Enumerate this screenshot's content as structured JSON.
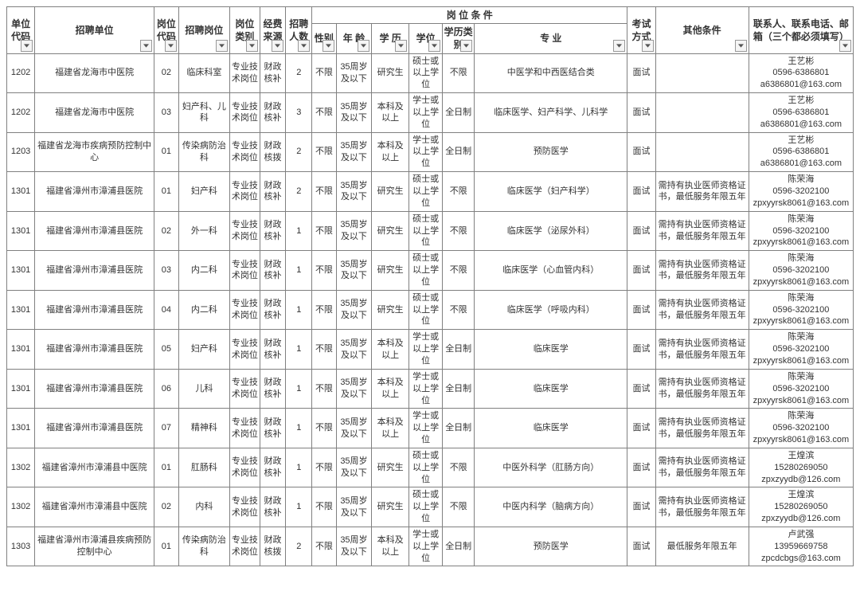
{
  "headers": {
    "unit_code": "单位代码",
    "employer": "招聘单位",
    "pos_code": "岗位代码",
    "position": "招聘岗位",
    "pos_type": "岗位类别",
    "fund_src": "经费来源",
    "headcount": "招聘人数",
    "conditions": "岗 位 条 件",
    "gender": "性别",
    "age": "年 龄",
    "education": "学 历",
    "degree": "学位",
    "edu_type": "学历类别",
    "major": "专 业",
    "exam": "考试方式",
    "other": "其他条件",
    "contact": "联系人、联系电话、邮箱（三个都必须填写）"
  },
  "rows": [
    {
      "c": [
        "1202",
        "福建省龙海市中医院",
        "02",
        "临床科室",
        "专业技术岗位",
        "财政核补",
        "2",
        "不限",
        "35周岁及以下",
        "研究生",
        "硕士或以上学位",
        "不限",
        "中医学和中西医结合类",
        "面试",
        "",
        "王艺彬\n0596-6386801\na6386801@163.com"
      ]
    },
    {
      "c": [
        "1202",
        "福建省龙海市中医院",
        "03",
        "妇产科、儿科",
        "专业技术岗位",
        "财政核补",
        "3",
        "不限",
        "35周岁及以下",
        "本科及以上",
        "学士或以上学位",
        "全日制",
        "临床医学、妇产科学、儿科学",
        "面试",
        "",
        "王艺彬\n0596-6386801\na6386801@163.com"
      ]
    },
    {
      "c": [
        "1203",
        "福建省龙海市疾病预防控制中心",
        "01",
        "传染病防治科",
        "专业技术岗位",
        "财政核拨",
        "2",
        "不限",
        "35周岁及以下",
        "本科及以上",
        "学士或以上学位",
        "全日制",
        "预防医学",
        "面试",
        "",
        "王艺彬\n0596-6386801\na6386801@163.com"
      ]
    },
    {
      "c": [
        "1301",
        "福建省漳州市漳浦县医院",
        "01",
        "妇产科",
        "专业技术岗位",
        "财政核补",
        "2",
        "不限",
        "35周岁及以下",
        "研究生",
        "硕士或以上学位",
        "不限",
        "临床医学（妇产科学）",
        "面试",
        "需持有执业医师资格证书，最低服务年限五年",
        "陈荣海\n0596-3202100\nzpxyyrsk8061@163.com"
      ]
    },
    {
      "c": [
        "1301",
        "福建省漳州市漳浦县医院",
        "02",
        "外一科",
        "专业技术岗位",
        "财政核补",
        "1",
        "不限",
        "35周岁及以下",
        "研究生",
        "硕士或以上学位",
        "不限",
        "临床医学（泌尿外科）",
        "面试",
        "需持有执业医师资格证书，最低服务年限五年",
        "陈荣海\n0596-3202100\nzpxyyrsk8061@163.com"
      ]
    },
    {
      "c": [
        "1301",
        "福建省漳州市漳浦县医院",
        "03",
        "内二科",
        "专业技术岗位",
        "财政核补",
        "1",
        "不限",
        "35周岁及以下",
        "研究生",
        "硕士或以上学位",
        "不限",
        "临床医学（心血管内科）",
        "面试",
        "需持有执业医师资格证书，最低服务年限五年",
        "陈荣海\n0596-3202100\nzpxyyrsk8061@163.com"
      ]
    },
    {
      "c": [
        "1301",
        "福建省漳州市漳浦县医院",
        "04",
        "内二科",
        "专业技术岗位",
        "财政核补",
        "1",
        "不限",
        "35周岁及以下",
        "研究生",
        "硕士或以上学位",
        "不限",
        "临床医学（呼吸内科）",
        "面试",
        "需持有执业医师资格证书，最低服务年限五年",
        "陈荣海\n0596-3202100\nzpxyyrsk8061@163.com"
      ]
    },
    {
      "c": [
        "1301",
        "福建省漳州市漳浦县医院",
        "05",
        "妇产科",
        "专业技术岗位",
        "财政核补",
        "1",
        "不限",
        "35周岁及以下",
        "本科及以上",
        "学士或以上学位",
        "全日制",
        "临床医学",
        "面试",
        "需持有执业医师资格证书，最低服务年限五年",
        "陈荣海\n0596-3202100\nzpxyyrsk8061@163.com"
      ]
    },
    {
      "c": [
        "1301",
        "福建省漳州市漳浦县医院",
        "06",
        "儿科",
        "专业技术岗位",
        "财政核补",
        "1",
        "不限",
        "35周岁及以下",
        "本科及以上",
        "学士或以上学位",
        "全日制",
        "临床医学",
        "面试",
        "需持有执业医师资格证书，最低服务年限五年",
        "陈荣海\n0596-3202100\nzpxyyrsk8061@163.com"
      ]
    },
    {
      "c": [
        "1301",
        "福建省漳州市漳浦县医院",
        "07",
        "精神科",
        "专业技术岗位",
        "财政核补",
        "1",
        "不限",
        "35周岁及以下",
        "本科及以上",
        "学士或以上学位",
        "全日制",
        "临床医学",
        "面试",
        "需持有执业医师资格证书，最低服务年限五年",
        "陈荣海\n0596-3202100\nzpxyyrsk8061@163.com"
      ]
    },
    {
      "c": [
        "1302",
        "福建省漳州市漳浦县中医院",
        "01",
        "肛肠科",
        "专业技术岗位",
        "财政核补",
        "1",
        "不限",
        "35周岁及以下",
        "研究生",
        "硕士或以上学位",
        "不限",
        "中医外科学（肛肠方向）",
        "面试",
        "需持有执业医师资格证书，最低服务年限五年",
        "王煌滨\n15280269050\nzpxzyydb@126.com"
      ]
    },
    {
      "c": [
        "1302",
        "福建省漳州市漳浦县中医院",
        "02",
        "内科",
        "专业技术岗位",
        "财政核补",
        "1",
        "不限",
        "35周岁及以下",
        "研究生",
        "硕士或以上学位",
        "不限",
        "中医内科学（脑病方向）",
        "面试",
        "需持有执业医师资格证书，最低服务年限五年",
        "王煌滨\n15280269050\nzpxzyydb@126.com"
      ]
    },
    {
      "c": [
        "1303",
        "福建省漳州市漳浦县疾病预防控制中心",
        "01",
        "传染病防治科",
        "专业技术岗位",
        "财政核拨",
        "2",
        "不限",
        "35周岁及以下",
        "本科及以上",
        "学士或以上学位",
        "全日制",
        "预防医学",
        "面试",
        "最低服务年限五年",
        "卢武强\n13959669758\nzpcdcbgs@163.com"
      ]
    }
  ]
}
